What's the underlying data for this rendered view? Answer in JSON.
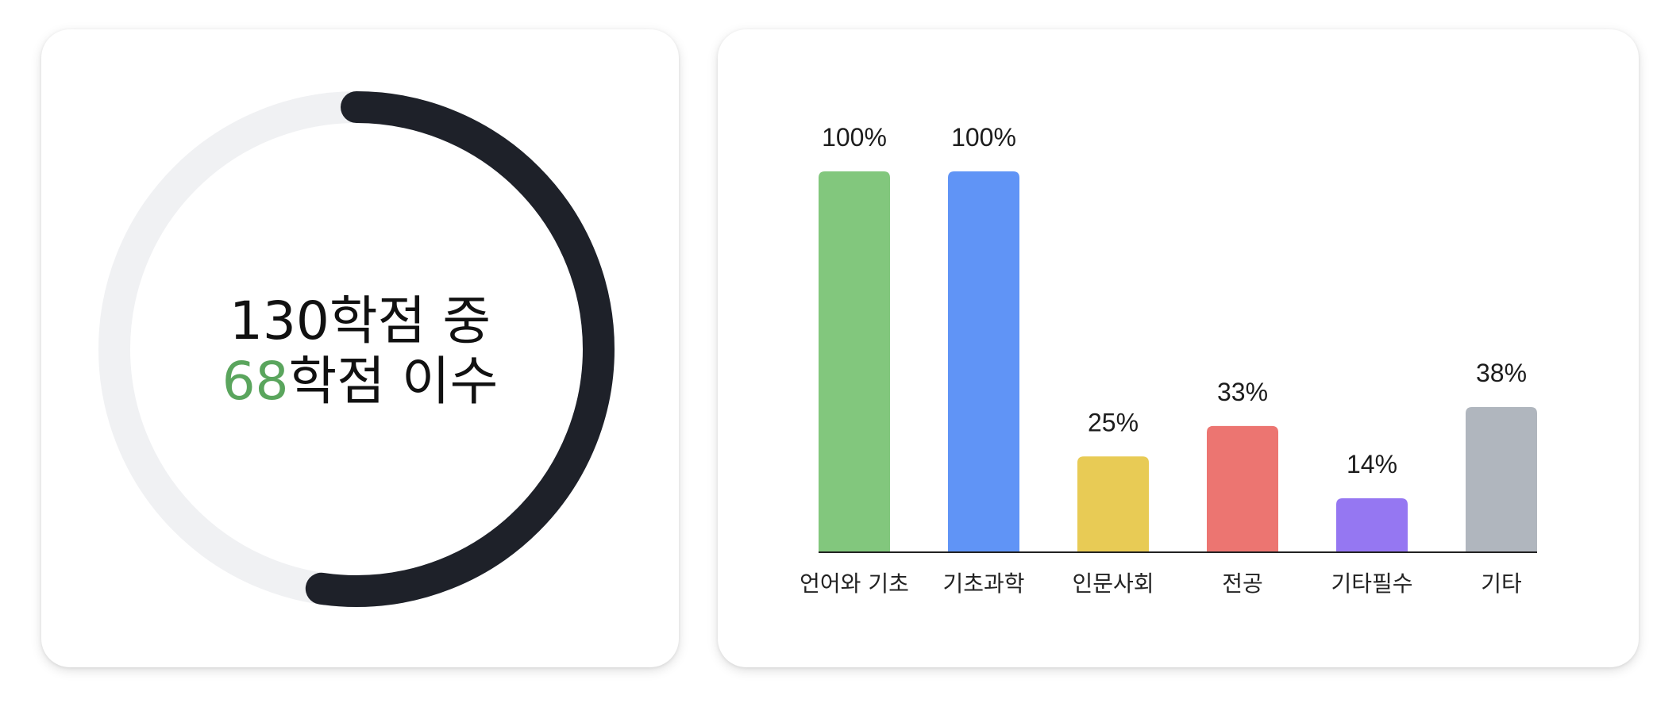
{
  "donut": {
    "total_prefix": "130학점 중",
    "earned_value": "68",
    "earned_suffix": "학점 이수",
    "fraction": 0.5231,
    "colors": {
      "progress": "#1e2129",
      "track": "#f0f1f3",
      "accent": "#5aa55d"
    }
  },
  "chart_data": {
    "type": "bar",
    "categories": [
      "언어와 기초",
      "기초과학",
      "인문사회",
      "전공",
      "기타필수",
      "기타"
    ],
    "values": [
      100,
      100,
      25,
      33,
      14,
      38
    ],
    "value_labels": [
      "100%",
      "100%",
      "25%",
      "33%",
      "14%",
      "38%"
    ],
    "colors": [
      "#82c77d",
      "#6094f6",
      "#e8cb55",
      "#ec7571",
      "#9577f2",
      "#b0b6be"
    ],
    "ylim": [
      0,
      100
    ],
    "title": "",
    "xlabel": "",
    "ylabel": "",
    "grid": false
  }
}
